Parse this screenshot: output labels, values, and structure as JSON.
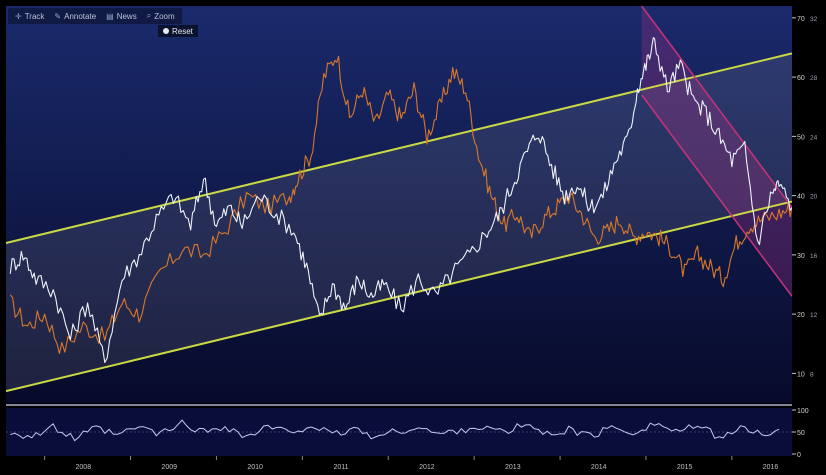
{
  "toolbar": {
    "items": [
      {
        "label": "Track",
        "icon": "crosshair-icon"
      },
      {
        "label": "Annotate",
        "icon": "pencil-icon"
      },
      {
        "label": "News",
        "icon": "news-icon"
      },
      {
        "label": "Zoom",
        "icon": "zoom-icon"
      }
    ],
    "reset_label": "Reset"
  },
  "colors": {
    "background_top": "#1a2a6c",
    "background_bottom": "#070a2a",
    "orange_series": "#d8782a",
    "white_series": "#eef2f8",
    "channel_lines": "#c9d843",
    "down_channel": "#c8327a",
    "oscillator": "#c8c8f0"
  },
  "chart_data": [
    {
      "type": "line",
      "x_tick_labels": [
        "2008",
        "2009",
        "2010",
        "2011",
        "2012",
        "2013",
        "2014",
        "2015",
        "2016"
      ],
      "x_range": [
        2007.55,
        2016.7
      ],
      "y_axis_right_ticks": [
        10,
        20,
        30,
        40,
        50,
        60,
        70
      ],
      "y_axis_left_ticks": [
        8,
        12,
        16,
        20,
        24,
        28,
        32
      ],
      "y_range": [
        5,
        72
      ],
      "grid": false,
      "series": [
        {
          "color": "orange",
          "axis": "right",
          "x": [
            2007.6,
            2007.8,
            2008.0,
            2008.2,
            2008.45,
            2008.7,
            2008.9,
            2009.1,
            2009.35,
            2009.6,
            2009.85,
            2010.1,
            2010.35,
            2010.6,
            2010.85,
            2010.95,
            2011.1,
            2011.25,
            2011.4,
            2011.55,
            2011.7,
            2011.85,
            2012.0,
            2012.15,
            2012.3,
            2012.45,
            2012.6,
            2012.75,
            2012.9,
            2013.05,
            2013.2,
            2013.35,
            2013.5,
            2013.65,
            2013.8,
            2013.95,
            2014.1,
            2014.25,
            2014.4,
            2014.55,
            2014.7,
            2014.85,
            2015.0,
            2015.15,
            2015.3,
            2015.45,
            2015.6,
            2015.75,
            2015.9,
            2016.05,
            2016.2,
            2016.35,
            2016.55,
            2016.7
          ],
          "y": [
            22,
            18,
            20,
            14,
            18,
            16,
            22,
            20,
            27,
            31,
            30,
            34,
            40,
            38,
            40,
            43,
            47,
            60,
            64,
            53,
            58,
            52,
            57,
            53,
            58,
            50,
            55,
            61,
            58,
            47,
            40,
            35,
            37,
            33,
            36,
            38,
            40,
            37,
            33,
            34,
            36,
            33,
            34,
            33,
            31,
            27,
            30,
            28,
            26,
            32,
            35,
            36,
            37,
            38
          ]
        },
        {
          "color": "white",
          "axis": "right",
          "x": [
            2007.6,
            2007.75,
            2007.9,
            2008.1,
            2008.3,
            2008.5,
            2008.7,
            2008.9,
            2009.1,
            2009.3,
            2009.5,
            2009.7,
            2009.85,
            2010.0,
            2010.15,
            2010.3,
            2010.5,
            2010.7,
            2010.9,
            2011.05,
            2011.2,
            2011.35,
            2011.5,
            2011.65,
            2011.8,
            2011.95,
            2012.15,
            2012.35,
            2012.55,
            2012.75,
            2012.95,
            2013.15,
            2013.3,
            2013.45,
            2013.6,
            2013.75,
            2013.9,
            2014.05,
            2014.2,
            2014.35,
            2014.5,
            2014.65,
            2014.8,
            2014.9,
            2015.0,
            2015.1,
            2015.25,
            2015.4,
            2015.55,
            2015.7,
            2015.85,
            2016.0,
            2016.15,
            2016.3,
            2016.45,
            2016.55,
            2016.7
          ],
          "y": [
            28,
            30,
            26,
            24,
            16,
            22,
            12,
            26,
            30,
            36,
            40,
            35,
            43,
            35,
            38,
            35,
            40,
            37,
            34,
            28,
            19,
            25,
            21,
            26,
            23,
            25,
            21,
            26,
            23,
            27,
            30,
            34,
            37,
            42,
            47,
            51,
            45,
            40,
            42,
            38,
            40,
            46,
            50,
            58,
            62,
            66,
            58,
            62,
            56,
            54,
            50,
            46,
            48,
            32,
            40,
            42,
            38
          ]
        }
      ],
      "overlays": [
        {
          "name_color": "yellow",
          "kind": "upper channel line",
          "x": [
            2007.55,
            2016.7
          ],
          "y": [
            32,
            64
          ]
        },
        {
          "name_color": "yellow",
          "kind": "lower channel line",
          "x": [
            2007.55,
            2016.7
          ],
          "y": [
            7,
            39
          ]
        },
        {
          "name_color": "magenta",
          "kind": "down channel upper line",
          "x": [
            2014.95,
            2016.7
          ],
          "y": [
            72,
            38
          ]
        },
        {
          "name_color": "magenta",
          "kind": "down channel lower line",
          "x": [
            2014.95,
            2016.7
          ],
          "y": [
            57,
            23
          ]
        }
      ]
    },
    {
      "type": "line",
      "y_axis_right_ticks": [
        0,
        50,
        100
      ],
      "y_range": [
        0,
        100
      ],
      "series": [
        {
          "color": "lavender",
          "x": [
            2007.6,
            2007.85,
            2008.1,
            2008.35,
            2008.6,
            2008.85,
            2009.1,
            2009.35,
            2009.6,
            2009.85,
            2010.1,
            2010.35,
            2010.6,
            2010.85,
            2011.1,
            2011.35,
            2011.6,
            2011.85,
            2012.1,
            2012.35,
            2012.6,
            2012.85,
            2013.1,
            2013.35,
            2013.6,
            2013.85,
            2014.1,
            2014.35,
            2014.6,
            2014.85,
            2015.1,
            2015.35,
            2015.6,
            2015.85,
            2016.1,
            2016.35,
            2016.6
          ],
          "y": [
            50,
            40,
            60,
            35,
            58,
            42,
            62,
            45,
            70,
            50,
            64,
            38,
            62,
            48,
            66,
            42,
            58,
            38,
            52,
            60,
            44,
            56,
            62,
            48,
            68,
            44,
            56,
            40,
            60,
            50,
            70,
            52,
            62,
            40,
            56,
            48,
            52
          ]
        }
      ]
    }
  ]
}
